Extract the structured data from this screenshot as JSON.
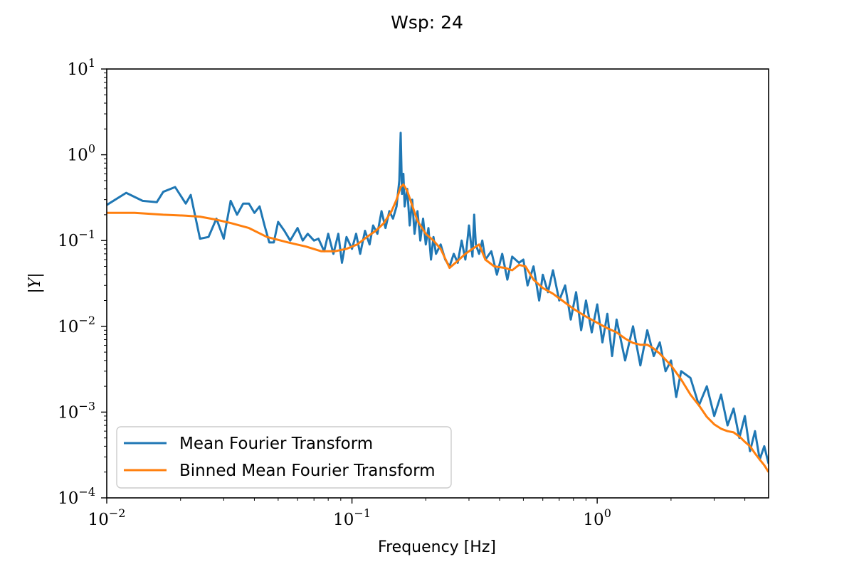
{
  "chart_data": {
    "type": "line",
    "title": "Wsp: 24",
    "xlabel": "Frequency [Hz]",
    "ylabel": "|Y|",
    "x_scale": "log",
    "y_scale": "log",
    "xlim": [
      0.01,
      5
    ],
    "ylim": [
      0.0001,
      10
    ],
    "x_ticks": [
      {
        "value": 0.01,
        "base": "10",
        "exp": "−2"
      },
      {
        "value": 0.1,
        "base": "10",
        "exp": "−1"
      },
      {
        "value": 1,
        "base": "10",
        "exp": "0"
      }
    ],
    "y_ticks": [
      {
        "value": 0.0001,
        "base": "10",
        "exp": "−4"
      },
      {
        "value": 0.001,
        "base": "10",
        "exp": "−3"
      },
      {
        "value": 0.01,
        "base": "10",
        "exp": "−2"
      },
      {
        "value": 0.1,
        "base": "10",
        "exp": "−1"
      },
      {
        "value": 1,
        "base": "10",
        "exp": "0"
      },
      {
        "value": 10,
        "base": "10",
        "exp": "1"
      }
    ],
    "grid": false,
    "legend_position": "bottom-left",
    "series": [
      {
        "name": "Mean Fourier Transform",
        "color": "#1f77b4",
        "x": [
          0.01,
          0.012,
          0.014,
          0.016,
          0.017,
          0.019,
          0.021,
          0.022,
          0.024,
          0.026,
          0.028,
          0.03,
          0.032,
          0.034,
          0.036,
          0.038,
          0.04,
          0.042,
          0.044,
          0.046,
          0.048,
          0.05,
          0.053,
          0.056,
          0.06,
          0.063,
          0.066,
          0.07,
          0.073,
          0.077,
          0.08,
          0.084,
          0.088,
          0.091,
          0.095,
          0.1,
          0.104,
          0.108,
          0.113,
          0.118,
          0.122,
          0.127,
          0.132,
          0.137,
          0.142,
          0.147,
          0.152,
          0.156,
          0.158,
          0.16,
          0.162,
          0.164,
          0.168,
          0.172,
          0.176,
          0.18,
          0.185,
          0.19,
          0.195,
          0.2,
          0.205,
          0.21,
          0.215,
          0.22,
          0.23,
          0.24,
          0.25,
          0.26,
          0.27,
          0.28,
          0.29,
          0.3,
          0.31,
          0.315,
          0.32,
          0.33,
          0.34,
          0.35,
          0.37,
          0.39,
          0.41,
          0.43,
          0.45,
          0.48,
          0.5,
          0.52,
          0.55,
          0.58,
          0.6,
          0.63,
          0.66,
          0.7,
          0.74,
          0.78,
          0.82,
          0.86,
          0.9,
          0.95,
          1.0,
          1.05,
          1.1,
          1.15,
          1.2,
          1.3,
          1.4,
          1.5,
          1.6,
          1.7,
          1.8,
          1.9,
          2.0,
          2.1,
          2.2,
          2.4,
          2.6,
          2.8,
          3.0,
          3.2,
          3.4,
          3.6,
          3.8,
          4.0,
          4.2,
          4.4,
          4.6,
          4.8,
          5.0
        ],
        "y": [
          0.26,
          0.36,
          0.29,
          0.28,
          0.37,
          0.42,
          0.27,
          0.34,
          0.105,
          0.11,
          0.18,
          0.105,
          0.29,
          0.2,
          0.27,
          0.27,
          0.21,
          0.25,
          0.15,
          0.095,
          0.095,
          0.165,
          0.13,
          0.1,
          0.14,
          0.1,
          0.12,
          0.1,
          0.105,
          0.075,
          0.12,
          0.07,
          0.12,
          0.055,
          0.11,
          0.08,
          0.12,
          0.07,
          0.13,
          0.09,
          0.15,
          0.12,
          0.22,
          0.14,
          0.22,
          0.18,
          0.25,
          0.5,
          1.8,
          0.35,
          0.6,
          0.25,
          0.4,
          0.15,
          0.3,
          0.12,
          0.22,
          0.1,
          0.18,
          0.09,
          0.14,
          0.06,
          0.11,
          0.07,
          0.09,
          0.06,
          0.05,
          0.07,
          0.055,
          0.1,
          0.06,
          0.15,
          0.065,
          0.2,
          0.09,
          0.07,
          0.1,
          0.06,
          0.075,
          0.04,
          0.07,
          0.035,
          0.065,
          0.055,
          0.06,
          0.03,
          0.05,
          0.02,
          0.04,
          0.025,
          0.045,
          0.02,
          0.03,
          0.012,
          0.025,
          0.009,
          0.02,
          0.0085,
          0.018,
          0.0065,
          0.014,
          0.0045,
          0.012,
          0.004,
          0.01,
          0.0035,
          0.009,
          0.0045,
          0.0065,
          0.003,
          0.004,
          0.0015,
          0.003,
          0.0025,
          0.0012,
          0.002,
          0.0009,
          0.0016,
          0.0007,
          0.0011,
          0.0005,
          0.0009,
          0.00035,
          0.0006,
          0.00028,
          0.0004,
          0.00025
        ]
      },
      {
        "name": "Binned Mean Fourier Transform",
        "color": "#ff7f0e",
        "x": [
          0.01,
          0.013,
          0.017,
          0.021,
          0.024,
          0.028,
          0.032,
          0.038,
          0.045,
          0.055,
          0.065,
          0.075,
          0.085,
          0.095,
          0.105,
          0.115,
          0.125,
          0.135,
          0.145,
          0.152,
          0.158,
          0.162,
          0.168,
          0.175,
          0.185,
          0.2,
          0.215,
          0.23,
          0.25,
          0.27,
          0.29,
          0.31,
          0.33,
          0.35,
          0.38,
          0.42,
          0.45,
          0.48,
          0.51,
          0.55,
          0.6,
          0.66,
          0.72,
          0.8,
          0.9,
          1.0,
          1.1,
          1.2,
          1.3,
          1.4,
          1.5,
          1.6,
          1.7,
          1.8,
          2.0,
          2.2,
          2.4,
          2.6,
          2.8,
          3.0,
          3.2,
          3.4,
          3.6,
          3.8,
          4.0,
          4.2,
          4.4,
          4.6,
          4.8,
          5.0
        ],
        "y": [
          0.21,
          0.21,
          0.2,
          0.195,
          0.19,
          0.175,
          0.16,
          0.14,
          0.11,
          0.095,
          0.085,
          0.075,
          0.075,
          0.08,
          0.09,
          0.11,
          0.13,
          0.16,
          0.22,
          0.3,
          0.42,
          0.45,
          0.38,
          0.27,
          0.17,
          0.12,
          0.1,
          0.08,
          0.048,
          0.058,
          0.07,
          0.08,
          0.09,
          0.06,
          0.05,
          0.048,
          0.045,
          0.052,
          0.05,
          0.035,
          0.028,
          0.024,
          0.02,
          0.016,
          0.013,
          0.011,
          0.0095,
          0.0085,
          0.0072,
          0.0064,
          0.0061,
          0.0061,
          0.0055,
          0.0048,
          0.0035,
          0.0024,
          0.0016,
          0.0012,
          0.00088,
          0.00072,
          0.00064,
          0.0006,
          0.00058,
          0.00052,
          0.00045,
          0.0004,
          0.00033,
          0.00028,
          0.00024,
          0.0002
        ]
      }
    ]
  }
}
